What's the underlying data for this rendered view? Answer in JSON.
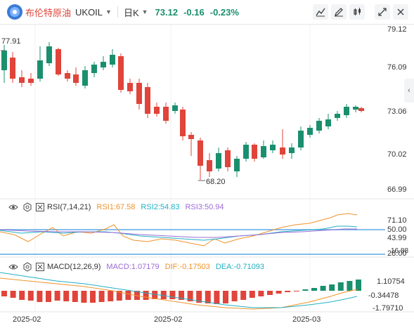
{
  "header": {
    "name": "布伦特原油",
    "symbol": "UKOIL",
    "period": "日K",
    "price": "73.12",
    "change": "-0.16",
    "change_pct": "-0.23%"
  },
  "colors": {
    "up": "#1a8f6e",
    "down": "#e0443a",
    "macd_up": "#1a8f6e",
    "macd_down": "#e0443a"
  },
  "price_axis": [
    "79.12",
    "76.09",
    "73.06",
    "70.02",
    "66.99"
  ],
  "annotations": {
    "high_label": "77.91",
    "low_label": "68.20"
  },
  "rsi": {
    "label": "RSI(7,14,21)",
    "rsi1": "RSI1:67.58",
    "rsi2": "RSI2:54.83",
    "rsi3": "RSI3:50.94",
    "axis": [
      "71.10",
      "50.00",
      "43.99",
      "28.00"
    ]
  },
  "macd": {
    "label": "MACD(12,26,9)",
    "macd": "MACD:1.07179",
    "dif": "DIF:-0.17503",
    "dea": "DEA:-0.71093",
    "axis": [
      "1.10754",
      "-0.34478",
      "-1.79710"
    ],
    "top_clip": "16.88"
  },
  "x_axis": [
    "2025-02",
    "2025-02",
    "2025-03"
  ]
}
